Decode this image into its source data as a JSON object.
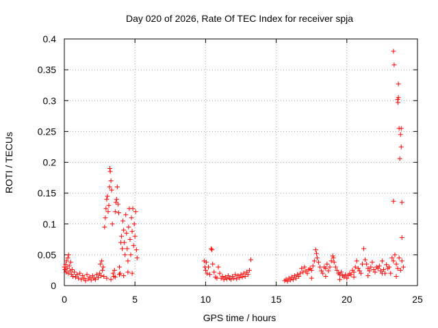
{
  "chart_data": {
    "type": "scatter",
    "title": "Day 020 of 2026, Rate Of TEC Index for receiver spja",
    "xlabel": "GPS time / hours",
    "ylabel": "ROTI / TECUs",
    "xlim": [
      0,
      25
    ],
    "ylim": [
      0,
      0.4
    ],
    "xticks": [
      0,
      5,
      10,
      15,
      20,
      25
    ],
    "yticks": [
      0,
      0.05,
      0.1,
      0.15,
      0.2,
      0.25,
      0.3,
      0.35,
      0.4
    ],
    "xtick_labels": [
      "0",
      "5",
      "10",
      "15",
      "20",
      "25"
    ],
    "ytick_labels": [
      "0",
      "0.05",
      "0.1",
      "0.15",
      "0.2",
      "0.25",
      "0.3",
      "0.35",
      "0.4"
    ],
    "grid": true,
    "marker": "+",
    "color": "#ff0000",
    "series": [
      {
        "name": "ROTI",
        "points": [
          [
            0.0,
            0.03
          ],
          [
            0.05,
            0.026
          ],
          [
            0.1,
            0.034
          ],
          [
            0.12,
            0.022
          ],
          [
            0.15,
            0.04
          ],
          [
            0.2,
            0.028
          ],
          [
            0.25,
            0.045
          ],
          [
            0.28,
            0.02
          ],
          [
            0.3,
            0.05
          ],
          [
            0.35,
            0.032
          ],
          [
            0.4,
            0.024
          ],
          [
            0.45,
            0.038
          ],
          [
            0.5,
            0.018
          ],
          [
            0.55,
            0.026
          ],
          [
            0.6,
            0.015
          ],
          [
            0.7,
            0.022
          ],
          [
            0.8,
            0.014
          ],
          [
            0.9,
            0.018
          ],
          [
            1.0,
            0.012
          ],
          [
            1.1,
            0.02
          ],
          [
            1.2,
            0.01
          ],
          [
            1.3,
            0.016
          ],
          [
            1.4,
            0.012
          ],
          [
            1.5,
            0.008
          ],
          [
            1.6,
            0.018
          ],
          [
            1.7,
            0.011
          ],
          [
            1.8,
            0.014
          ],
          [
            1.9,
            0.009
          ],
          [
            2.0,
            0.016
          ],
          [
            2.1,
            0.012
          ],
          [
            2.2,
            0.01
          ],
          [
            2.3,
            0.018
          ],
          [
            2.4,
            0.013
          ],
          [
            2.5,
            0.02
          ],
          [
            2.55,
            0.035
          ],
          [
            2.6,
            0.016
          ],
          [
            2.65,
            0.04
          ],
          [
            2.7,
            0.025
          ],
          [
            2.75,
            0.03
          ],
          [
            2.8,
            0.015
          ],
          [
            2.85,
            0.095
          ],
          [
            2.9,
            0.11
          ],
          [
            2.95,
            0.125
          ],
          [
            3.0,
            0.14
          ],
          [
            3.05,
            0.145
          ],
          [
            3.1,
            0.12
          ],
          [
            3.15,
            0.13
          ],
          [
            3.2,
            0.16
          ],
          [
            3.22,
            0.19
          ],
          [
            3.25,
            0.185
          ],
          [
            3.3,
            0.17
          ],
          [
            3.35,
            0.155
          ],
          [
            3.4,
            0.1
          ],
          [
            3.45,
            0.02
          ],
          [
            3.5,
            0.015
          ],
          [
            3.55,
            0.025
          ],
          [
            3.6,
            0.12
          ],
          [
            3.65,
            0.135
          ],
          [
            3.7,
            0.14
          ],
          [
            3.75,
            0.16
          ],
          [
            3.8,
            0.132
          ],
          [
            3.85,
            0.118
          ],
          [
            3.9,
            0.03
          ],
          [
            3.95,
            0.02
          ],
          [
            4.0,
            0.07
          ],
          [
            4.05,
            0.08
          ],
          [
            4.1,
            0.06
          ],
          [
            4.15,
            0.105
          ],
          [
            4.2,
            0.09
          ],
          [
            4.25,
            0.07
          ],
          [
            4.3,
            0.05
          ],
          [
            4.35,
            0.115
          ],
          [
            4.4,
            0.085
          ],
          [
            4.45,
            0.06
          ],
          [
            4.5,
            0.04
          ],
          [
            4.55,
            0.095
          ],
          [
            4.6,
            0.125
          ],
          [
            4.65,
            0.075
          ],
          [
            4.7,
            0.05
          ],
          [
            4.75,
            0.11
          ],
          [
            4.8,
            0.088
          ],
          [
            4.85,
            0.125
          ],
          [
            4.9,
            0.065
          ],
          [
            4.95,
            0.1
          ],
          [
            5.0,
            0.08
          ],
          [
            5.05,
            0.12
          ],
          [
            5.1,
            0.058
          ],
          [
            5.15,
            0.045
          ],
          [
            3.0,
            0.012
          ],
          [
            3.3,
            0.01
          ],
          [
            3.6,
            0.014
          ],
          [
            3.9,
            0.018
          ],
          [
            4.2,
            0.016
          ],
          [
            4.5,
            0.022
          ],
          [
            4.8,
            0.02
          ],
          [
            9.9,
            0.04
          ],
          [
            9.95,
            0.03
          ],
          [
            10.0,
            0.025
          ],
          [
            10.05,
            0.038
          ],
          [
            10.1,
            0.02
          ],
          [
            10.2,
            0.03
          ],
          [
            10.3,
            0.018
          ],
          [
            10.4,
            0.06
          ],
          [
            10.45,
            0.058
          ],
          [
            10.5,
            0.035
          ],
          [
            10.6,
            0.022
          ],
          [
            10.7,
            0.014
          ],
          [
            10.8,
            0.012
          ],
          [
            10.9,
            0.03
          ],
          [
            11.0,
            0.02
          ],
          [
            11.1,
            0.012
          ],
          [
            11.2,
            0.015
          ],
          [
            11.3,
            0.01
          ],
          [
            11.4,
            0.014
          ],
          [
            11.5,
            0.011
          ],
          [
            11.6,
            0.016
          ],
          [
            11.7,
            0.012
          ],
          [
            11.8,
            0.01
          ],
          [
            11.9,
            0.015
          ],
          [
            12.0,
            0.012
          ],
          [
            12.1,
            0.018
          ],
          [
            12.2,
            0.011
          ],
          [
            12.3,
            0.016
          ],
          [
            12.4,
            0.013
          ],
          [
            12.5,
            0.018
          ],
          [
            12.6,
            0.014
          ],
          [
            12.7,
            0.02
          ],
          [
            12.8,
            0.015
          ],
          [
            12.9,
            0.022
          ],
          [
            13.0,
            0.018
          ],
          [
            13.1,
            0.025
          ],
          [
            13.2,
            0.042
          ],
          [
            15.6,
            0.008
          ],
          [
            15.7,
            0.01
          ],
          [
            15.8,
            0.007
          ],
          [
            15.9,
            0.012
          ],
          [
            16.0,
            0.009
          ],
          [
            16.1,
            0.014
          ],
          [
            16.2,
            0.01
          ],
          [
            16.3,
            0.016
          ],
          [
            16.4,
            0.012
          ],
          [
            16.5,
            0.018
          ],
          [
            16.6,
            0.015
          ],
          [
            16.7,
            0.02
          ],
          [
            16.8,
            0.028
          ],
          [
            16.9,
            0.022
          ],
          [
            17.0,
            0.03
          ],
          [
            17.1,
            0.024
          ],
          [
            17.2,
            0.02
          ],
          [
            17.3,
            0.026
          ],
          [
            17.4,
            0.028
          ],
          [
            17.5,
            0.025
          ],
          [
            17.6,
            0.032
          ],
          [
            17.7,
            0.04
          ],
          [
            17.8,
            0.058
          ],
          [
            17.85,
            0.052
          ],
          [
            17.9,
            0.045
          ],
          [
            18.0,
            0.038
          ],
          [
            18.1,
            0.03
          ],
          [
            18.2,
            0.024
          ],
          [
            18.3,
            0.02
          ],
          [
            18.4,
            0.03
          ],
          [
            18.5,
            0.028
          ],
          [
            18.6,
            0.035
          ],
          [
            18.7,
            0.024
          ],
          [
            18.8,
            0.03
          ],
          [
            18.9,
            0.04
          ],
          [
            19.0,
            0.048
          ],
          [
            19.05,
            0.045
          ],
          [
            19.1,
            0.038
          ],
          [
            19.2,
            0.03
          ],
          [
            19.3,
            0.025
          ],
          [
            19.4,
            0.02
          ],
          [
            19.5,
            0.018
          ],
          [
            19.6,
            0.022
          ],
          [
            19.7,
            0.016
          ],
          [
            19.8,
            0.014
          ],
          [
            19.9,
            0.018
          ],
          [
            20.0,
            0.012
          ],
          [
            20.1,
            0.016
          ],
          [
            20.2,
            0.02
          ],
          [
            20.3,
            0.018
          ],
          [
            20.4,
            0.025
          ],
          [
            20.5,
            0.022
          ],
          [
            20.6,
            0.03
          ],
          [
            20.7,
            0.04
          ],
          [
            20.8,
            0.028
          ],
          [
            20.9,
            0.024
          ],
          [
            21.0,
            0.02
          ],
          [
            21.1,
            0.035
          ],
          [
            21.2,
            0.06
          ],
          [
            21.3,
            0.042
          ],
          [
            21.4,
            0.035
          ],
          [
            21.5,
            0.028
          ],
          [
            21.6,
            0.024
          ],
          [
            21.7,
            0.03
          ],
          [
            21.8,
            0.038
          ],
          [
            21.9,
            0.026
          ],
          [
            22.0,
            0.022
          ],
          [
            22.1,
            0.03
          ],
          [
            22.2,
            0.028
          ],
          [
            22.3,
            0.032
          ],
          [
            22.4,
            0.024
          ],
          [
            22.5,
            0.04
          ],
          [
            22.6,
            0.026
          ],
          [
            22.7,
            0.02
          ],
          [
            22.8,
            0.034
          ],
          [
            22.9,
            0.028
          ],
          [
            23.0,
            0.03
          ],
          [
            23.1,
            0.02
          ],
          [
            23.2,
            0.045
          ],
          [
            23.3,
            0.04
          ],
          [
            23.4,
            0.05
          ],
          [
            23.5,
            0.035
          ],
          [
            23.6,
            0.028
          ],
          [
            23.7,
            0.045
          ],
          [
            23.8,
            0.025
          ],
          [
            23.9,
            0.04
          ],
          [
            24.0,
            0.03
          ],
          [
            17.5,
            0.012
          ],
          [
            18.5,
            0.015
          ],
          [
            19.5,
            0.01
          ],
          [
            20.5,
            0.014
          ],
          [
            21.5,
            0.016
          ],
          [
            22.5,
            0.02
          ],
          [
            23.5,
            0.015
          ],
          [
            23.3,
            0.38
          ],
          [
            23.35,
            0.358
          ],
          [
            23.3,
            0.137
          ],
          [
            23.6,
            0.302
          ],
          [
            23.62,
            0.297
          ],
          [
            23.65,
            0.305
          ],
          [
            23.65,
            0.327
          ],
          [
            23.7,
            0.255
          ],
          [
            23.8,
            0.245
          ],
          [
            23.85,
            0.225
          ],
          [
            23.85,
            0.255
          ],
          [
            23.75,
            0.206
          ],
          [
            23.9,
            0.135
          ],
          [
            23.9,
            0.078
          ]
        ]
      }
    ]
  }
}
